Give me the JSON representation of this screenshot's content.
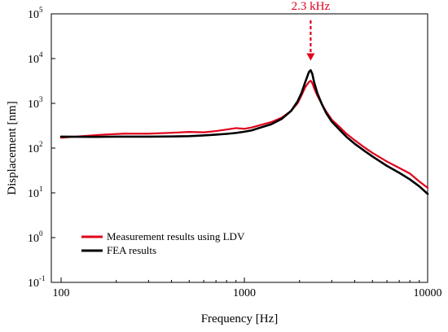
{
  "chart_data": {
    "type": "line",
    "xscale": "log",
    "yscale": "log",
    "xlim": [
      100,
      10000
    ],
    "ylim": [
      0.1,
      100000
    ],
    "xlabel": "Frequency [Hz]",
    "ylabel": "Displacement [nm]",
    "xticks": [
      {
        "value": 100,
        "label": "100"
      },
      {
        "value": 1000,
        "label": "1000"
      },
      {
        "value": 10000,
        "label": "10000"
      }
    ],
    "yticks": [
      {
        "value": 0.1,
        "base": "10",
        "exp": "-1"
      },
      {
        "value": 1,
        "base": "10",
        "exp": "0"
      },
      {
        "value": 10,
        "base": "10",
        "exp": "1"
      },
      {
        "value": 100,
        "base": "10",
        "exp": "2"
      },
      {
        "value": 1000,
        "base": "10",
        "exp": "3"
      },
      {
        "value": 10000,
        "base": "10",
        "exp": "4"
      },
      {
        "value": 100000,
        "base": "10",
        "exp": "5"
      }
    ],
    "grid": false,
    "legend_position": "bottom-left",
    "annotation": {
      "text": "2.3 kHz",
      "x": 2300,
      "y_from": 100000,
      "y_to": 9000,
      "color": "#e0001b"
    },
    "series": [
      {
        "name": "Measurement results using LDV",
        "color": "#e0001b",
        "x": [
          100,
          130,
          170,
          220,
          300,
          400,
          500,
          600,
          700,
          800,
          900,
          1000,
          1100,
          1200,
          1400,
          1600,
          1800,
          1950,
          2050,
          2150,
          2250,
          2300,
          2350,
          2400,
          2500,
          2650,
          2800,
          3000,
          3300,
          3600,
          4000,
          4500,
          5000,
          6000,
          7000,
          8000,
          9000,
          10000
        ],
        "y": [
          170,
          185,
          200,
          210,
          210,
          220,
          230,
          225,
          240,
          260,
          280,
          270,
          290,
          320,
          380,
          480,
          680,
          1000,
          1500,
          2300,
          3000,
          3200,
          2800,
          2200,
          1500,
          950,
          650,
          430,
          300,
          210,
          150,
          105,
          78,
          50,
          36,
          27,
          18,
          13
        ]
      },
      {
        "name": "FEA results",
        "color": "#000000",
        "x": [
          100,
          150,
          200,
          300,
          400,
          500,
          600,
          700,
          800,
          900,
          1000,
          1100,
          1200,
          1400,
          1600,
          1800,
          1950,
          2050,
          2150,
          2250,
          2300,
          2350,
          2400,
          2500,
          2650,
          2800,
          3000,
          3300,
          3600,
          4000,
          4500,
          5000,
          6000,
          7000,
          8000,
          9000,
          10000
        ],
        "y": [
          180,
          178,
          180,
          180,
          182,
          185,
          192,
          200,
          208,
          218,
          232,
          250,
          280,
          340,
          450,
          680,
          1100,
          1700,
          3000,
          5000,
          5500,
          4500,
          3000,
          1700,
          950,
          600,
          390,
          260,
          180,
          125,
          88,
          65,
          40,
          28,
          20,
          14,
          9.5
        ]
      }
    ]
  }
}
